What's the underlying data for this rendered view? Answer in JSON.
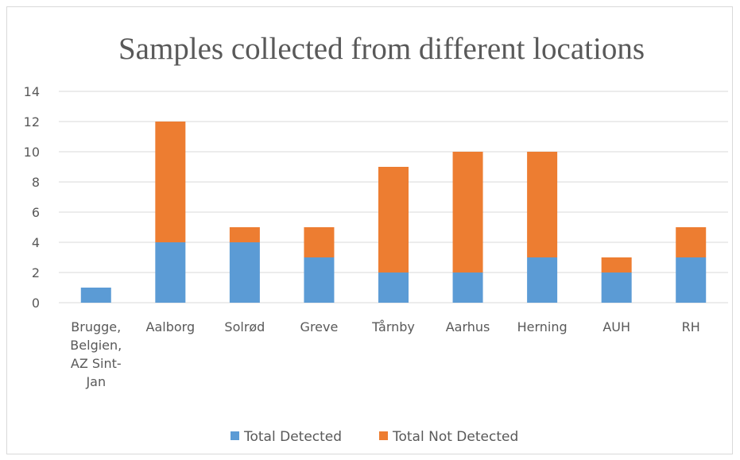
{
  "chart_data": {
    "type": "bar",
    "stacked": true,
    "title": "Samples collected from different locations",
    "categories": [
      [
        "Brugge,",
        "Belgien,",
        "AZ Sint-",
        "Jan"
      ],
      [
        "Aalborg"
      ],
      [
        "Solrød"
      ],
      [
        "Greve"
      ],
      [
        "Tårnby"
      ],
      [
        "Aarhus"
      ],
      [
        "Herning"
      ],
      [
        "AUH"
      ],
      [
        "RH"
      ]
    ],
    "series": [
      {
        "name": "Total Detected",
        "color": "#5b9bd5",
        "values": [
          1,
          4,
          4,
          3,
          2,
          2,
          3,
          2,
          3
        ]
      },
      {
        "name": "Total Not Detected",
        "color": "#ed7d31",
        "values": [
          0,
          8,
          1,
          2,
          7,
          8,
          7,
          1,
          2
        ]
      }
    ],
    "ylim": [
      0,
      14
    ],
    "yticks": [
      0,
      2,
      4,
      6,
      8,
      10,
      12,
      14
    ],
    "grid": true,
    "legend": "bottom",
    "xlabel": "",
    "ylabel": ""
  }
}
